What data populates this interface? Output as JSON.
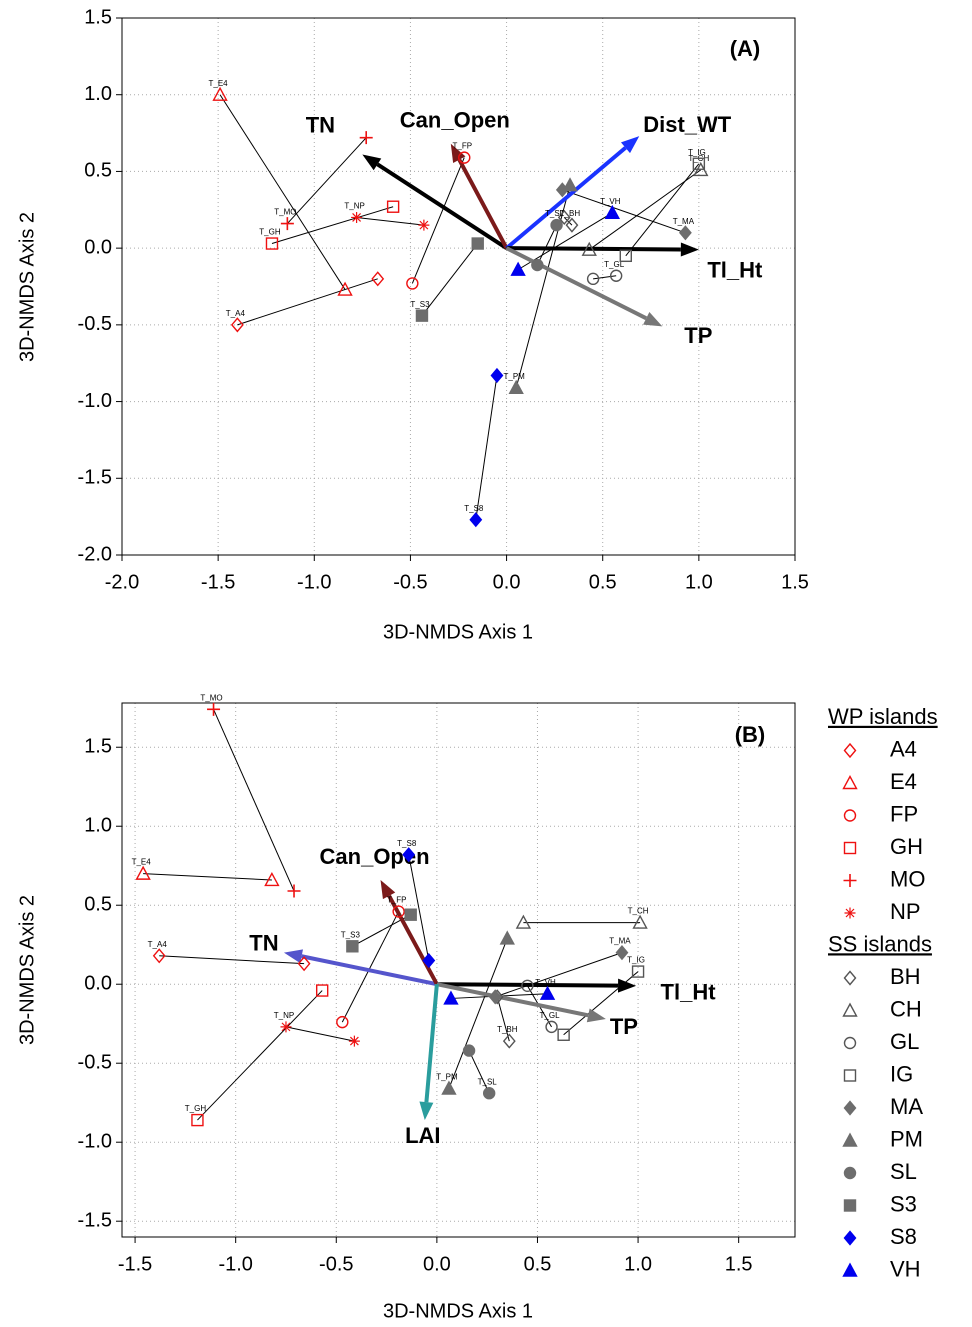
{
  "chart_data": [
    {
      "type": "scatter",
      "title": "(A)",
      "xlabel": "3D-NMDS Axis 1",
      "ylabel": "3D-NMDS Axis 2",
      "xlim": [
        -2,
        1.5
      ],
      "ylim": [
        -2,
        1.5
      ],
      "grid": true,
      "xticks": [
        {
          "value": -2,
          "label": "-2.0"
        },
        -1.5,
        {
          "value": -1,
          "label": "-1.0"
        },
        -0.5,
        {
          "value": 0,
          "label": "0.0"
        },
        0.5,
        {
          "value": 1,
          "label": "1.0"
        },
        1.5
      ],
      "yticks": [
        {
          "value": -2,
          "label": "-2.0"
        },
        -1.5,
        {
          "value": -1,
          "label": "-1.0"
        },
        -0.5,
        {
          "value": 0,
          "label": "0.0"
        },
        0.5,
        {
          "value": 1,
          "label": "1.0"
        },
        1.5
      ],
      "series": [
        {
          "color": "#ee1111",
          "marker": "diamond",
          "filled": false,
          "x": [
            -1.4,
            -0.67
          ],
          "y": [
            -0.5,
            -0.2
          ],
          "labels": [
            "T_A4",
            null
          ]
        },
        {
          "color": "#ee1111",
          "marker": "triangle",
          "filled": false,
          "x": [
            -1.49,
            -0.84
          ],
          "y": [
            1.0,
            -0.27
          ],
          "labels": [
            "T_E4",
            null
          ]
        },
        {
          "color": "#ee1111",
          "marker": "circle",
          "filled": false,
          "x": [
            -0.22,
            -0.49
          ],
          "y": [
            0.59,
            -0.23
          ],
          "labels": [
            "T_FP",
            null
          ]
        },
        {
          "color": "#ee1111",
          "marker": "square",
          "filled": false,
          "x": [
            -1.22,
            -0.59
          ],
          "y": [
            0.03,
            0.27
          ],
          "labels": [
            "T_GH",
            null
          ]
        },
        {
          "color": "#ee1111",
          "marker": "plus",
          "filled": false,
          "x": [
            -1.14,
            -0.73
          ],
          "y": [
            0.16,
            0.72
          ],
          "labels": [
            "T_MO",
            null
          ]
        },
        {
          "color": "#ee1111",
          "marker": "asterisk",
          "filled": false,
          "x": [
            -0.78,
            -0.43
          ],
          "y": [
            0.2,
            0.15
          ],
          "labels": [
            "T_NP",
            null
          ]
        },
        {
          "color": "#555555",
          "marker": "diamond",
          "filled": false,
          "x": [
            0.34,
            0.3
          ],
          "y": [
            0.15,
            0.2
          ],
          "labels": [
            "T_BH",
            null
          ]
        },
        {
          "color": "#555555",
          "marker": "triangle",
          "filled": false,
          "x": [
            1.01,
            0.43
          ],
          "y": [
            0.51,
            -0.01
          ],
          "labels": [
            "T_CH",
            null
          ]
        },
        {
          "color": "#555555",
          "marker": "circle",
          "filled": false,
          "x": [
            0.57,
            0.45
          ],
          "y": [
            -0.18,
            -0.2
          ],
          "labels": [
            "T_GL",
            null
          ]
        },
        {
          "color": "#555555",
          "marker": "square",
          "filled": false,
          "x": [
            1.0,
            0.62
          ],
          "y": [
            0.55,
            -0.05
          ],
          "labels": [
            "T_IG",
            null
          ]
        },
        {
          "color": "#6d6d6d",
          "marker": "diamond",
          "filled": true,
          "x": [
            0.93,
            0.29
          ],
          "y": [
            0.1,
            0.38
          ],
          "labels": [
            "T_MA",
            null
          ]
        },
        {
          "color": "#6d6d6d",
          "marker": "triangle",
          "filled": true,
          "x": [
            0.05,
            0.33
          ],
          "y": [
            -0.91,
            0.41
          ],
          "labels": [
            "T_PM",
            null
          ]
        },
        {
          "color": "#6d6d6d",
          "marker": "circle",
          "filled": true,
          "x": [
            0.26,
            0.16
          ],
          "y": [
            0.15,
            -0.11
          ],
          "labels": [
            "T_SL",
            null
          ]
        },
        {
          "color": "#6d6d6d",
          "marker": "square",
          "filled": true,
          "x": [
            -0.44,
            -0.15
          ],
          "y": [
            -0.44,
            0.03
          ],
          "labels": [
            "T_S3",
            null
          ]
        },
        {
          "color": "#0000ee",
          "marker": "diamond",
          "filled": true,
          "x": [
            -0.16,
            -0.05
          ],
          "y": [
            -1.77,
            -0.83
          ],
          "labels": [
            "T_S8",
            null
          ]
        },
        {
          "color": "#0000ee",
          "marker": "triangle",
          "filled": true,
          "x": [
            0.55,
            0.06
          ],
          "y": [
            0.23,
            -0.14
          ],
          "labels": [
            "T_VH",
            null
          ]
        }
      ],
      "vectors": [
        {
          "name": "TN",
          "color": "#000000",
          "x": -0.75,
          "y": 0.61
        },
        {
          "name": "Can_Open",
          "color": "#7b1a1a",
          "x": -0.29,
          "y": 0.68
        },
        {
          "name": "Dist_WT",
          "color": "#1a33ff",
          "x": 0.69,
          "y": 0.73
        },
        {
          "name": "Tl_Ht",
          "color": "#000000",
          "x": 1.0,
          "y": -0.01
        },
        {
          "name": "TP",
          "color": "#777777",
          "x": 0.81,
          "y": -0.51
        }
      ]
    },
    {
      "type": "scatter",
      "title": "(B)",
      "xlabel": "3D-NMDS Axis 1",
      "ylabel": "3D-NMDS Axis 2",
      "xlim": [
        -1.565,
        1.78
      ],
      "ylim": [
        -1.6,
        1.78
      ],
      "grid": true,
      "xticks": [
        -1.5,
        {
          "value": -1,
          "label": "-1.0"
        },
        -0.5,
        {
          "value": 0,
          "label": "0.0"
        },
        0.5,
        {
          "value": 1,
          "label": "1.0"
        },
        1.5
      ],
      "yticks": [
        -1.5,
        {
          "value": -1,
          "label": "-1.0"
        },
        -0.5,
        {
          "value": 0,
          "label": "0.0"
        },
        0.5,
        {
          "value": 1,
          "label": "1.0"
        },
        1.5
      ],
      "series_groups": [
        {
          "title": "WP islands",
          "series": [
            {
              "name": "A4",
              "color": "#ee1111",
              "marker": "diamond",
              "filled": false,
              "x": [
                -1.38,
                -0.66
              ],
              "y": [
                0.18,
                0.13
              ],
              "labels": [
                "T_A4",
                null
              ]
            },
            {
              "name": "E4",
              "color": "#ee1111",
              "marker": "triangle",
              "filled": false,
              "x": [
                -1.46,
                -0.82
              ],
              "y": [
                0.7,
                0.66
              ],
              "labels": [
                "T_E4",
                null
              ]
            },
            {
              "name": "FP",
              "color": "#ee1111",
              "marker": "circle",
              "filled": false,
              "x": [
                -0.19,
                -0.47
              ],
              "y": [
                0.46,
                -0.24
              ],
              "labels": [
                "T_FP",
                null
              ]
            },
            {
              "name": "GH",
              "color": "#ee1111",
              "marker": "square",
              "filled": false,
              "x": [
                -1.19,
                -0.57
              ],
              "y": [
                -0.86,
                -0.04
              ],
              "labels": [
                "T_GH",
                null
              ]
            },
            {
              "name": "MO",
              "color": "#ee1111",
              "marker": "plus",
              "filled": false,
              "x": [
                -1.11,
                -0.71
              ],
              "y": [
                1.74,
                0.59
              ],
              "labels": [
                "T_MO",
                null
              ]
            },
            {
              "name": "NP",
              "color": "#ee1111",
              "marker": "asterisk",
              "filled": false,
              "x": [
                -0.75,
                -0.41
              ],
              "y": [
                -0.27,
                -0.36
              ],
              "labels": [
                "T_NP",
                null
              ]
            }
          ]
        },
        {
          "title": "SS islands",
          "series": [
            {
              "name": "BH",
              "color": "#555555",
              "marker": "diamond",
              "filled": false,
              "x": [
                0.36,
                0.3
              ],
              "y": [
                -0.36,
                -0.08
              ],
              "labels": [
                "T_BH",
                null
              ]
            },
            {
              "name": "CH",
              "color": "#555555",
              "marker": "triangle",
              "filled": false,
              "x": [
                1.01,
                0.43
              ],
              "y": [
                0.39,
                0.39
              ],
              "labels": [
                "T_CH",
                null
              ]
            },
            {
              "name": "GL",
              "color": "#555555",
              "marker": "circle",
              "filled": false,
              "x": [
                0.57,
                0.45
              ],
              "y": [
                -0.27,
                -0.01
              ],
              "labels": [
                "T_GL",
                null
              ]
            },
            {
              "name": "IG",
              "color": "#555555",
              "marker": "square",
              "filled": false,
              "x": [
                1.0,
                0.63
              ],
              "y": [
                0.08,
                -0.32
              ],
              "labels": [
                "T_IG",
                null
              ]
            },
            {
              "name": "MA",
              "color": "#6d6d6d",
              "marker": "diamond",
              "filled": true,
              "x": [
                0.92,
                0.29
              ],
              "y": [
                0.2,
                -0.08
              ],
              "labels": [
                "T_MA",
                null
              ]
            },
            {
              "name": "PM",
              "color": "#6d6d6d",
              "marker": "triangle",
              "filled": true,
              "x": [
                0.06,
                0.35
              ],
              "y": [
                -0.66,
                0.29
              ],
              "labels": [
                "T_PM",
                null
              ]
            },
            {
              "name": "SL",
              "color": "#6d6d6d",
              "marker": "circle",
              "filled": true,
              "x": [
                0.26,
                0.16
              ],
              "y": [
                -0.69,
                -0.42
              ],
              "labels": [
                "T_SL",
                null
              ]
            },
            {
              "name": "S3",
              "color": "#6d6d6d",
              "marker": "square",
              "filled": true,
              "x": [
                -0.42,
                -0.13
              ],
              "y": [
                0.24,
                0.44
              ],
              "labels": [
                "T_S3",
                null
              ]
            },
            {
              "name": "S8",
              "color": "#0000ee",
              "marker": "diamond",
              "filled": true,
              "x": [
                -0.14,
                -0.04
              ],
              "y": [
                0.82,
                0.15
              ],
              "labels": [
                "T_S8",
                null
              ]
            },
            {
              "name": "VH",
              "color": "#0000ee",
              "marker": "triangle",
              "filled": true,
              "x": [
                0.55,
                0.07
              ],
              "y": [
                -0.06,
                -0.09
              ],
              "labels": [
                "T_VH",
                null
              ]
            }
          ]
        }
      ],
      "vectors": [
        {
          "name": "TN",
          "color": "#5555cc",
          "x": -0.76,
          "y": 0.2
        },
        {
          "name": "Can_Open",
          "color": "#7b1a1a",
          "x": -0.28,
          "y": 0.66
        },
        {
          "name": "Tl_Ht",
          "color": "#000000",
          "x": 0.99,
          "y": -0.01
        },
        {
          "name": "TP",
          "color": "#777777",
          "x": 0.84,
          "y": -0.22
        },
        {
          "name": "LAI",
          "color": "#2a9d9d",
          "x": -0.06,
          "y": -0.86
        }
      ]
    }
  ]
}
